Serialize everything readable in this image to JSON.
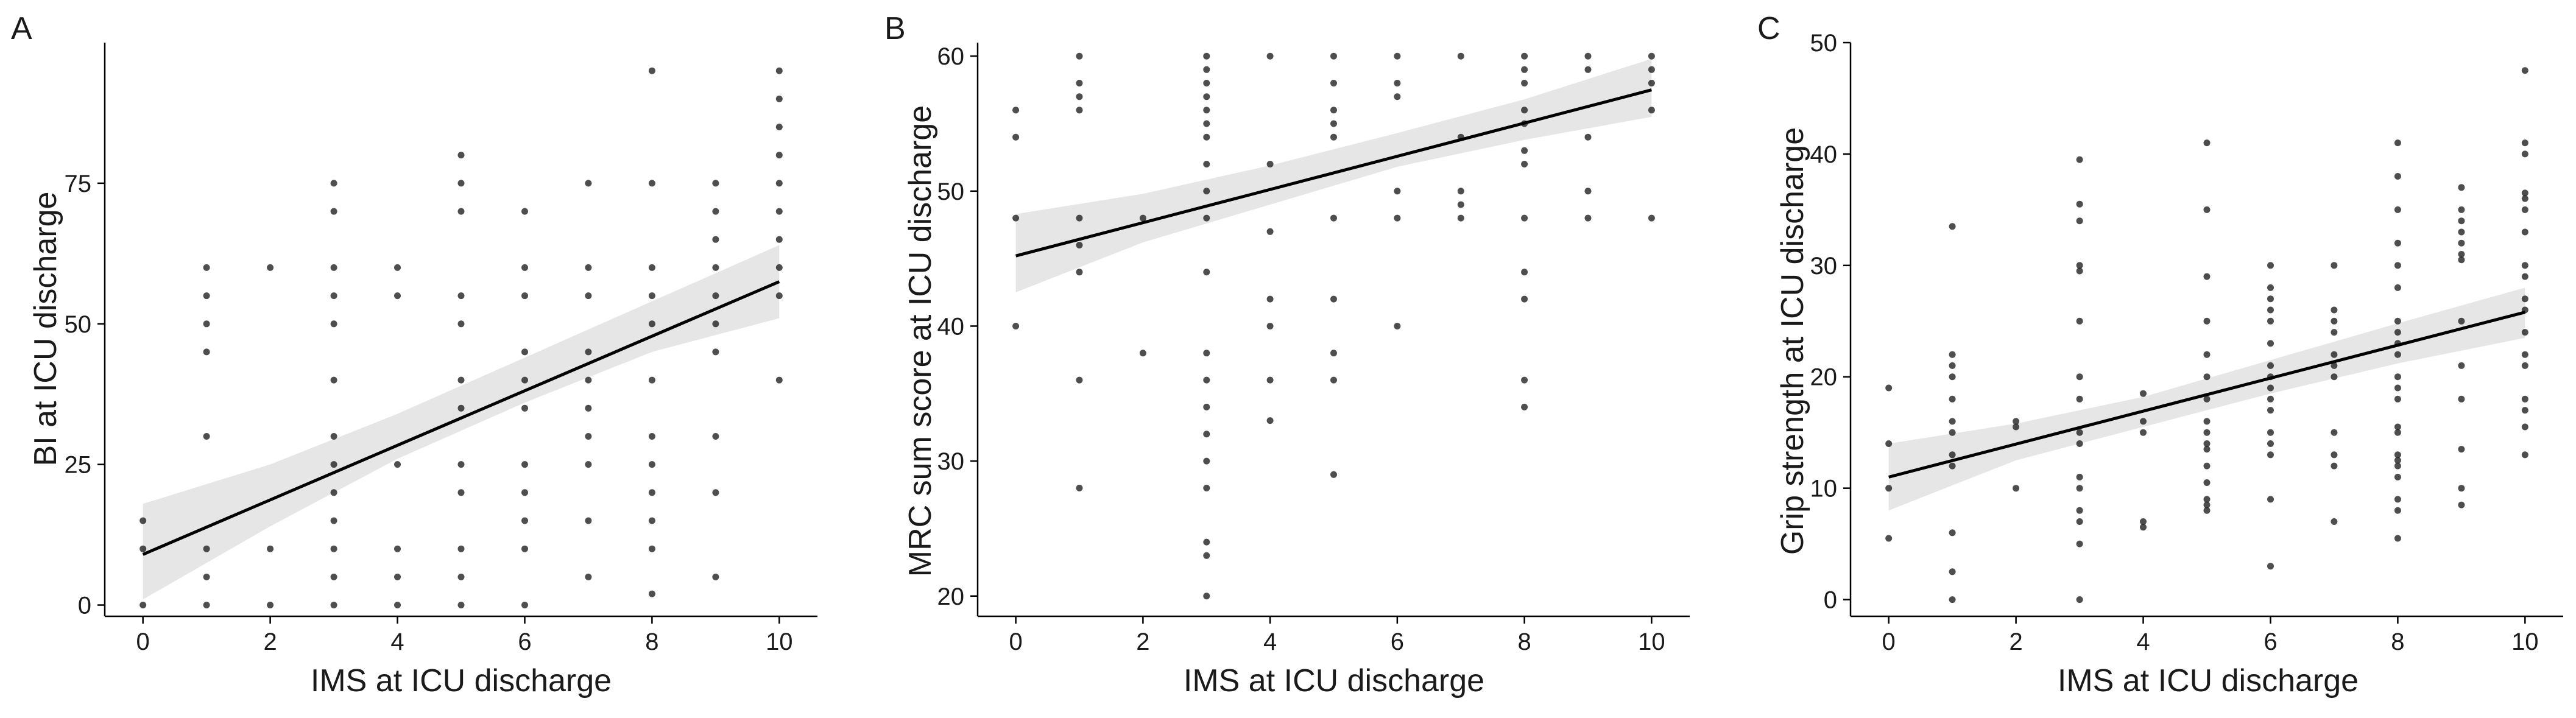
{
  "figure": {
    "colors": {
      "point": "#222222",
      "line": "#000000",
      "ribbon": "#e6e6e6",
      "axis": "#000000",
      "text": "#1a1a1a"
    }
  },
  "chart_data": [
    {
      "type": "scatter",
      "panel": "A",
      "title": "",
      "xlabel": "IMS at ICU discharge",
      "ylabel": "BI at ICU discharge",
      "xlim": [
        -0.6,
        10.6
      ],
      "ylim": [
        -2,
        100
      ],
      "xticks": [
        0,
        2,
        4,
        6,
        8,
        10
      ],
      "yticks": [
        0,
        25,
        50,
        75
      ],
      "grid": false,
      "regression": {
        "x": [
          0,
          10
        ],
        "y": [
          9,
          57.5
        ]
      },
      "ribbon": {
        "x": [
          0,
          2,
          4,
          6,
          8,
          10
        ],
        "lower": [
          1,
          14,
          26,
          36,
          45,
          51
        ],
        "upper": [
          18,
          25,
          34,
          44,
          54,
          64
        ]
      },
      "points": [
        [
          0,
          0
        ],
        [
          0,
          10
        ],
        [
          0,
          15
        ],
        [
          1,
          0
        ],
        [
          1,
          5
        ],
        [
          1,
          10
        ],
        [
          1,
          30
        ],
        [
          1,
          45
        ],
        [
          1,
          50
        ],
        [
          1,
          55
        ],
        [
          1,
          60
        ],
        [
          2,
          0
        ],
        [
          2,
          10
        ],
        [
          2,
          60
        ],
        [
          3,
          0
        ],
        [
          3,
          5
        ],
        [
          3,
          10
        ],
        [
          3,
          15
        ],
        [
          3,
          20
        ],
        [
          3,
          25
        ],
        [
          3,
          30
        ],
        [
          3,
          40
        ],
        [
          3,
          50
        ],
        [
          3,
          55
        ],
        [
          3,
          60
        ],
        [
          3,
          70
        ],
        [
          3,
          75
        ],
        [
          4,
          0
        ],
        [
          4,
          5
        ],
        [
          4,
          10
        ],
        [
          4,
          25
        ],
        [
          4,
          55
        ],
        [
          4,
          60
        ],
        [
          5,
          0
        ],
        [
          5,
          5
        ],
        [
          5,
          10
        ],
        [
          5,
          20
        ],
        [
          5,
          25
        ],
        [
          5,
          35
        ],
        [
          5,
          40
        ],
        [
          5,
          50
        ],
        [
          5,
          55
        ],
        [
          5,
          70
        ],
        [
          5,
          75
        ],
        [
          5,
          80
        ],
        [
          6,
          0
        ],
        [
          6,
          10
        ],
        [
          6,
          15
        ],
        [
          6,
          20
        ],
        [
          6,
          25
        ],
        [
          6,
          35
        ],
        [
          6,
          40
        ],
        [
          6,
          45
        ],
        [
          6,
          55
        ],
        [
          6,
          60
        ],
        [
          6,
          70
        ],
        [
          7,
          5
        ],
        [
          7,
          15
        ],
        [
          7,
          25
        ],
        [
          7,
          30
        ],
        [
          7,
          35
        ],
        [
          7,
          40
        ],
        [
          7,
          45
        ],
        [
          7,
          55
        ],
        [
          7,
          60
        ],
        [
          7,
          75
        ],
        [
          8,
          2
        ],
        [
          8,
          10
        ],
        [
          8,
          15
        ],
        [
          8,
          20
        ],
        [
          8,
          25
        ],
        [
          8,
          30
        ],
        [
          8,
          40
        ],
        [
          8,
          50
        ],
        [
          8,
          55
        ],
        [
          8,
          60
        ],
        [
          8,
          75
        ],
        [
          8,
          95
        ],
        [
          9,
          5
        ],
        [
          9,
          20
        ],
        [
          9,
          30
        ],
        [
          9,
          45
        ],
        [
          9,
          50
        ],
        [
          9,
          55
        ],
        [
          9,
          60
        ],
        [
          9,
          65
        ],
        [
          9,
          70
        ],
        [
          9,
          75
        ],
        [
          10,
          40
        ],
        [
          10,
          55
        ],
        [
          10,
          60
        ],
        [
          10,
          65
        ],
        [
          10,
          70
        ],
        [
          10,
          75
        ],
        [
          10,
          80
        ],
        [
          10,
          85
        ],
        [
          10,
          90
        ],
        [
          10,
          95
        ]
      ]
    },
    {
      "type": "scatter",
      "panel": "B",
      "title": "",
      "xlabel": "IMS at ICU discharge",
      "ylabel": "MRC sum score at ICU discharge",
      "xlim": [
        -0.6,
        10.6
      ],
      "ylim": [
        18.5,
        61
      ],
      "xticks": [
        0,
        2,
        4,
        6,
        8,
        10
      ],
      "yticks": [
        20,
        30,
        40,
        50,
        60
      ],
      "grid": false,
      "regression": {
        "x": [
          0,
          10
        ],
        "y": [
          45.2,
          57.5
        ]
      },
      "ribbon": {
        "x": [
          0,
          2,
          4,
          6,
          8,
          10
        ],
        "lower": [
          42.5,
          46.2,
          49.0,
          51.8,
          53.8,
          55.5
        ],
        "upper": [
          48.3,
          49.8,
          51.9,
          54.3,
          56.8,
          59.8
        ]
      },
      "points": [
        [
          0,
          40
        ],
        [
          0,
          48
        ],
        [
          0,
          54
        ],
        [
          0,
          56
        ],
        [
          1,
          28
        ],
        [
          1,
          36
        ],
        [
          1,
          44
        ],
        [
          1,
          46
        ],
        [
          1,
          48
        ],
        [
          1,
          56
        ],
        [
          1,
          57
        ],
        [
          1,
          58
        ],
        [
          1,
          60
        ],
        [
          2,
          38
        ],
        [
          2,
          48
        ],
        [
          3,
          20
        ],
        [
          3,
          23
        ],
        [
          3,
          24
        ],
        [
          3,
          28
        ],
        [
          3,
          30
        ],
        [
          3,
          32
        ],
        [
          3,
          34
        ],
        [
          3,
          36
        ],
        [
          3,
          38
        ],
        [
          3,
          44
        ],
        [
          3,
          48
        ],
        [
          3,
          50
        ],
        [
          3,
          52
        ],
        [
          3,
          54
        ],
        [
          3,
          55
        ],
        [
          3,
          56
        ],
        [
          3,
          57
        ],
        [
          3,
          58
        ],
        [
          3,
          59
        ],
        [
          3,
          60
        ],
        [
          4,
          33
        ],
        [
          4,
          36
        ],
        [
          4,
          40
        ],
        [
          4,
          42
        ],
        [
          4,
          47
        ],
        [
          4,
          52
        ],
        [
          4,
          60
        ],
        [
          5,
          29
        ],
        [
          5,
          36
        ],
        [
          5,
          38
        ],
        [
          5,
          42
        ],
        [
          5,
          48
        ],
        [
          5,
          54
        ],
        [
          5,
          55
        ],
        [
          5,
          56
        ],
        [
          5,
          58
        ],
        [
          5,
          60
        ],
        [
          6,
          40
        ],
        [
          6,
          48
        ],
        [
          6,
          50
        ],
        [
          6,
          57
        ],
        [
          6,
          58
        ],
        [
          6,
          60
        ],
        [
          7,
          48
        ],
        [
          7,
          49
        ],
        [
          7,
          50
        ],
        [
          7,
          54
        ],
        [
          7,
          60
        ],
        [
          8,
          34
        ],
        [
          8,
          36
        ],
        [
          8,
          42
        ],
        [
          8,
          44
        ],
        [
          8,
          48
        ],
        [
          8,
          52
        ],
        [
          8,
          53
        ],
        [
          8,
          55
        ],
        [
          8,
          56
        ],
        [
          8,
          58
        ],
        [
          8,
          59
        ],
        [
          8,
          60
        ],
        [
          9,
          48
        ],
        [
          9,
          50
        ],
        [
          9,
          54
        ],
        [
          9,
          59
        ],
        [
          9,
          60
        ],
        [
          10,
          48
        ],
        [
          10,
          56
        ],
        [
          10,
          58
        ],
        [
          10,
          59
        ],
        [
          10,
          60
        ]
      ]
    },
    {
      "type": "scatter",
      "panel": "C",
      "title": "",
      "xlabel": "IMS at ICU discharge",
      "ylabel": "Grip strength at ICU discharge",
      "xlim": [
        -0.6,
        10.6
      ],
      "ylim": [
        -1.5,
        50
      ],
      "xticks": [
        0,
        2,
        4,
        6,
        8,
        10
      ],
      "yticks": [
        0,
        10,
        20,
        30,
        40,
        50
      ],
      "grid": false,
      "regression": {
        "x": [
          0,
          10
        ],
        "y": [
          11,
          25.8
        ]
      },
      "ribbon": {
        "x": [
          0,
          2,
          4,
          6,
          8,
          10
        ],
        "lower": [
          8,
          12.5,
          15.5,
          18.5,
          21.2,
          23.5
        ],
        "upper": [
          14,
          15.8,
          18.2,
          21.5,
          24.8,
          28
        ]
      },
      "points": [
        [
          0,
          5.5
        ],
        [
          0,
          10
        ],
        [
          0,
          14
        ],
        [
          0,
          19
        ],
        [
          1,
          0
        ],
        [
          1,
          2.5
        ],
        [
          1,
          6
        ],
        [
          1,
          12
        ],
        [
          1,
          13
        ],
        [
          1,
          15
        ],
        [
          1,
          16
        ],
        [
          1,
          18
        ],
        [
          1,
          20
        ],
        [
          1,
          21
        ],
        [
          1,
          22
        ],
        [
          1,
          33.5
        ],
        [
          2,
          10
        ],
        [
          2,
          15.5
        ],
        [
          2,
          16
        ],
        [
          3,
          0
        ],
        [
          3,
          5
        ],
        [
          3,
          7
        ],
        [
          3,
          8
        ],
        [
          3,
          10
        ],
        [
          3,
          11
        ],
        [
          3,
          14
        ],
        [
          3,
          15
        ],
        [
          3,
          18
        ],
        [
          3,
          20
        ],
        [
          3,
          25
        ],
        [
          3,
          29.5
        ],
        [
          3,
          30
        ],
        [
          3,
          34
        ],
        [
          3,
          35.5
        ],
        [
          3,
          39.5
        ],
        [
          4,
          6.5
        ],
        [
          4,
          7
        ],
        [
          4,
          15
        ],
        [
          4,
          16
        ],
        [
          4,
          18.5
        ],
        [
          5,
          8
        ],
        [
          5,
          8.5
        ],
        [
          5,
          9
        ],
        [
          5,
          10.5
        ],
        [
          5,
          12
        ],
        [
          5,
          13.5
        ],
        [
          5,
          14
        ],
        [
          5,
          15
        ],
        [
          5,
          16
        ],
        [
          5,
          18
        ],
        [
          5,
          20
        ],
        [
          5,
          22
        ],
        [
          5,
          25
        ],
        [
          5,
          29
        ],
        [
          5,
          35
        ],
        [
          5,
          41
        ],
        [
          6,
          3
        ],
        [
          6,
          9
        ],
        [
          6,
          13
        ],
        [
          6,
          14
        ],
        [
          6,
          15
        ],
        [
          6,
          17
        ],
        [
          6,
          18
        ],
        [
          6,
          19
        ],
        [
          6,
          20
        ],
        [
          6,
          21
        ],
        [
          6,
          23
        ],
        [
          6,
          25
        ],
        [
          6,
          26
        ],
        [
          6,
          27
        ],
        [
          6,
          28
        ],
        [
          6,
          30
        ],
        [
          7,
          7
        ],
        [
          7,
          12
        ],
        [
          7,
          13
        ],
        [
          7,
          15
        ],
        [
          7,
          20
        ],
        [
          7,
          21
        ],
        [
          7,
          22
        ],
        [
          7,
          24
        ],
        [
          7,
          25
        ],
        [
          7,
          26
        ],
        [
          7,
          30
        ],
        [
          8,
          5.5
        ],
        [
          8,
          8
        ],
        [
          8,
          9
        ],
        [
          8,
          11
        ],
        [
          8,
          12
        ],
        [
          8,
          12.5
        ],
        [
          8,
          13
        ],
        [
          8,
          15
        ],
        [
          8,
          15.5
        ],
        [
          8,
          18
        ],
        [
          8,
          19
        ],
        [
          8,
          20
        ],
        [
          8,
          22
        ],
        [
          8,
          23
        ],
        [
          8,
          24
        ],
        [
          8,
          25
        ],
        [
          8,
          28
        ],
        [
          8,
          30
        ],
        [
          8,
          32
        ],
        [
          8,
          35
        ],
        [
          8,
          38
        ],
        [
          8,
          41
        ],
        [
          9,
          8.5
        ],
        [
          9,
          10
        ],
        [
          9,
          13.5
        ],
        [
          9,
          18
        ],
        [
          9,
          21
        ],
        [
          9,
          25
        ],
        [
          9,
          30.5
        ],
        [
          9,
          31
        ],
        [
          9,
          32
        ],
        [
          9,
          33
        ],
        [
          9,
          34
        ],
        [
          9,
          35
        ],
        [
          9,
          37
        ],
        [
          10,
          13
        ],
        [
          10,
          15.5
        ],
        [
          10,
          17
        ],
        [
          10,
          18
        ],
        [
          10,
          21
        ],
        [
          10,
          22
        ],
        [
          10,
          24
        ],
        [
          10,
          26
        ],
        [
          10,
          27
        ],
        [
          10,
          29
        ],
        [
          10,
          30
        ],
        [
          10,
          33
        ],
        [
          10,
          35
        ],
        [
          10,
          36
        ],
        [
          10,
          36.5
        ],
        [
          10,
          40
        ],
        [
          10,
          41
        ],
        [
          10,
          47.5
        ]
      ]
    }
  ]
}
